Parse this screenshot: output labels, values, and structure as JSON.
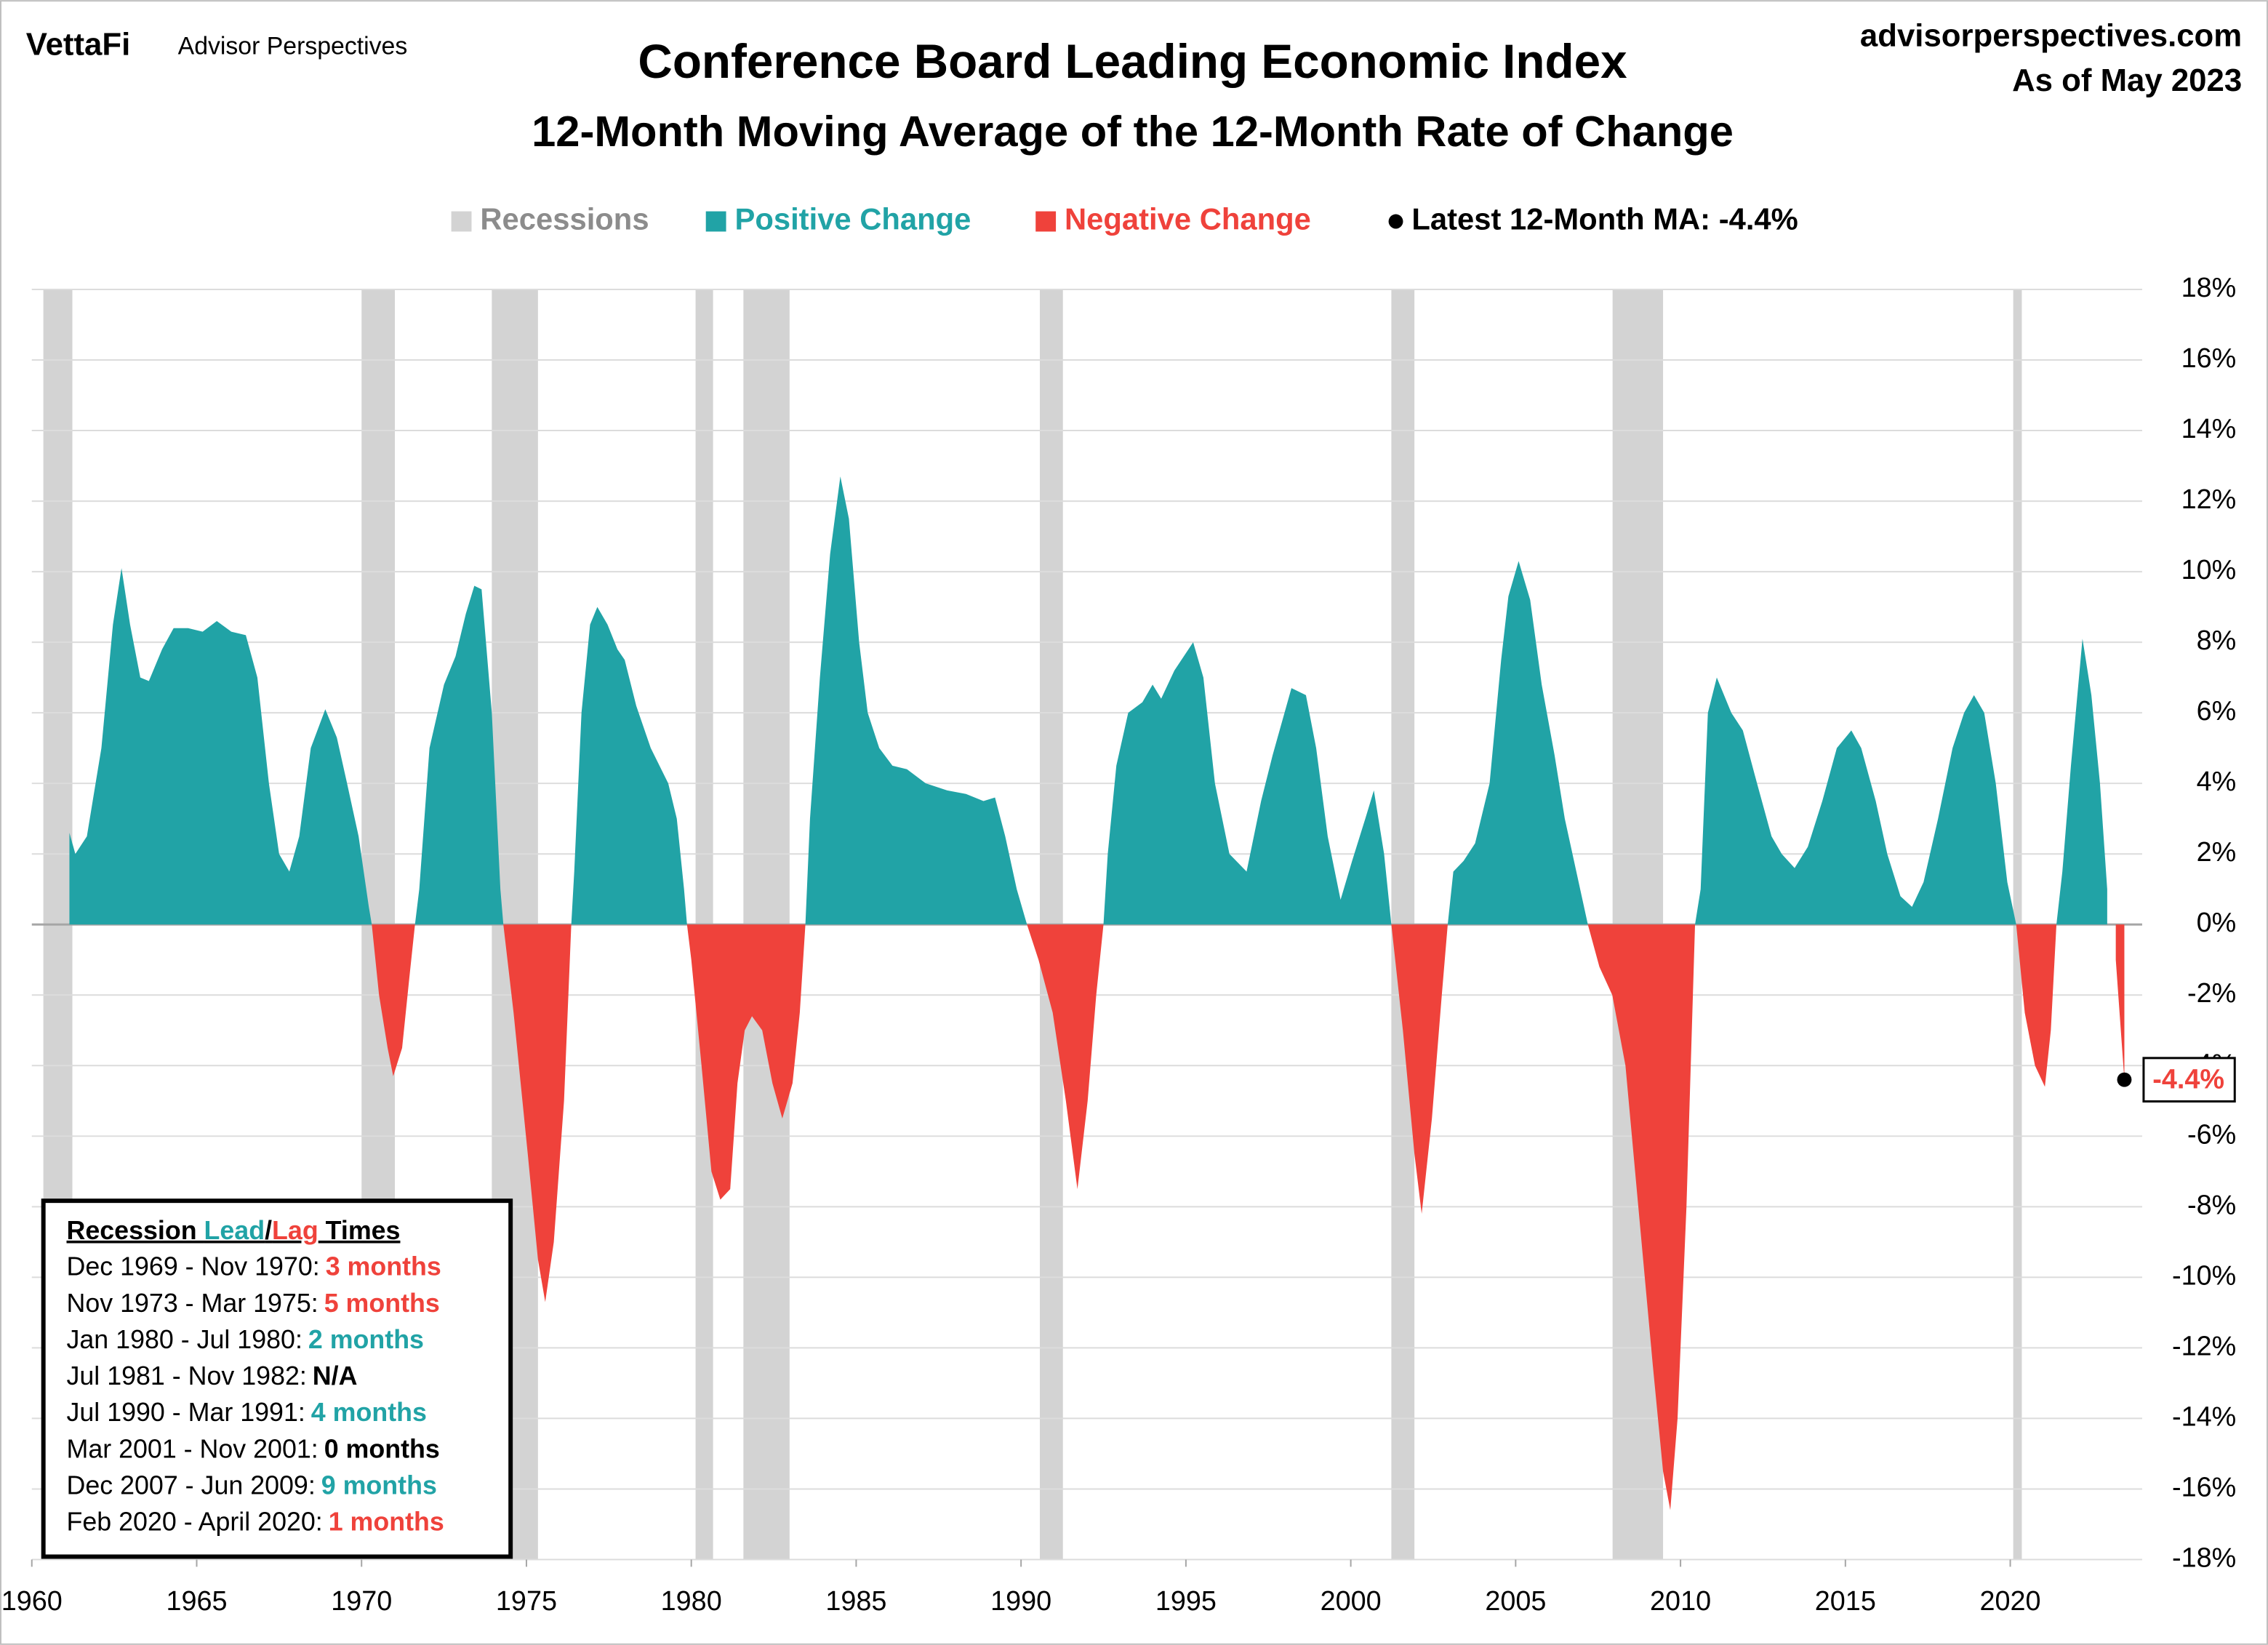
{
  "header": {
    "brand": "VettaFi",
    "brand_sub": "Advisor Perspectives",
    "site": "advisorperspectives.com",
    "as_of": "As of May 2023"
  },
  "chart_data": {
    "type": "area",
    "title": "Conference Board Leading Economic Index",
    "subtitle": "12-Month Moving Average of the 12-Month Rate of Change",
    "positive_color": "#21a3a6",
    "negative_color": "#ef423b",
    "recession_color": "#d3d3d3",
    "legend": [
      {
        "label": "Recessions",
        "color": "#d3d3d3",
        "text_color": "#8c8c8c"
      },
      {
        "label": "Positive Change",
        "color": "#21a3a6",
        "text_color": "#21a3a6"
      },
      {
        "label": "Negative Change",
        "color": "#ef423b",
        "text_color": "#ef423b"
      },
      {
        "label": "Latest 12-Month MA: -4.4%",
        "color": "#000000",
        "text_color": "#000000"
      }
    ],
    "latest_label": "-4.4%",
    "recessions": [
      [
        1960.35,
        1961.23
      ],
      [
        1970.0,
        1971.01
      ],
      [
        1973.95,
        1975.35
      ],
      [
        1980.13,
        1980.66
      ],
      [
        1981.58,
        1982.98
      ],
      [
        1990.57,
        1991.27
      ],
      [
        2001.23,
        2001.93
      ],
      [
        2007.94,
        2009.47
      ],
      [
        2020.09,
        2020.35
      ]
    ],
    "x": [
      1961.14,
      1961.32,
      1961.67,
      1962.11,
      1962.46,
      1962.72,
      1962.98,
      1963.29,
      1963.55,
      1963.95,
      1964.3,
      1964.74,
      1965.18,
      1965.61,
      1966.05,
      1966.49,
      1966.84,
      1967.19,
      1967.5,
      1967.81,
      1968.11,
      1968.46,
      1968.9,
      1969.25,
      1969.56,
      1969.91,
      1970.22,
      1970.31,
      1970.53,
      1970.79,
      1970.96,
      1971.23,
      1971.45,
      1971.62,
      1971.75,
      1972.06,
      1972.5,
      1972.85,
      1973.16,
      1973.42,
      1973.64,
      1973.95,
      1974.21,
      1974.3,
      1974.61,
      1975.04,
      1975.35,
      1975.57,
      1975.83,
      1976.14,
      1976.36,
      1976.45,
      1976.67,
      1976.93,
      1977.15,
      1977.46,
      1977.76,
      1977.98,
      1978.33,
      1978.77,
      1979.3,
      1979.56,
      1979.78,
      1979.87,
      1980.0,
      1980.31,
      1980.61,
      1980.88,
      1981.18,
      1981.4,
      1981.62,
      1981.84,
      1982.15,
      1982.46,
      1982.76,
      1983.07,
      1983.29,
      1983.46,
      1983.6,
      1983.9,
      1984.21,
      1984.52,
      1984.78,
      1985.09,
      1985.35,
      1985.7,
      1986.1,
      1986.54,
      1987.11,
      1987.76,
      1988.33,
      1988.86,
      1989.21,
      1989.52,
      1989.87,
      1990.18,
      1990.53,
      1990.96,
      1991.36,
      1991.71,
      1992.02,
      1992.28,
      1992.5,
      1992.63,
      1992.89,
      1993.25,
      1993.68,
      1993.99,
      1994.25,
      1994.65,
      1995.22,
      1995.53,
      1995.88,
      1996.32,
      1996.84,
      1997.28,
      1997.63,
      1998.2,
      1998.64,
      1998.95,
      1999.3,
      1999.69,
      2000.04,
      2000.44,
      2000.7,
      2001.01,
      2001.23,
      2001.58,
      2001.93,
      2002.15,
      2002.46,
      2002.76,
      2002.94,
      2003.11,
      2003.42,
      2003.77,
      2004.21,
      2004.56,
      2004.78,
      2005.09,
      2005.44,
      2005.79,
      2006.18,
      2006.49,
      2006.84,
      2007.19,
      2007.54,
      2007.93,
      2008.33,
      2008.72,
      2009.16,
      2009.47,
      2009.69,
      2009.91,
      2010.18,
      2010.44,
      2010.61,
      2010.83,
      2011.1,
      2011.54,
      2011.89,
      2012.32,
      2012.76,
      2013.07,
      2013.46,
      2013.86,
      2014.3,
      2014.74,
      2015.18,
      2015.48,
      2015.92,
      2016.27,
      2016.67,
      2017.02,
      2017.37,
      2017.81,
      2018.25,
      2018.6,
      2018.9,
      2019.21,
      2019.56,
      2019.91,
      2020.18,
      2020.44,
      2020.75,
      2021.05,
      2021.23,
      2021.4,
      2021.58,
      2021.84,
      2022.19,
      2022.46,
      2022.72,
      2022.94,
      2023.2,
      2023.46
    ],
    "values": [
      2.6,
      2.0,
      2.5,
      5.0,
      8.5,
      10.1,
      8.5,
      7.0,
      6.9,
      7.8,
      8.4,
      8.4,
      8.3,
      8.6,
      8.3,
      8.2,
      7.0,
      4.0,
      2.0,
      1.5,
      2.5,
      5.0,
      6.1,
      5.3,
      4.0,
      2.5,
      0.5,
      0,
      -2.0,
      -3.5,
      -4.3,
      -3.5,
      -1.5,
      0,
      1.0,
      5.0,
      6.8,
      7.6,
      8.8,
      9.6,
      9.5,
      6.0,
      1.0,
      0,
      -2.5,
      -6.5,
      -9.5,
      -10.7,
      -9.0,
      -5.0,
      0,
      1.5,
      6.0,
      8.5,
      9.0,
      8.5,
      7.8,
      7.5,
      6.2,
      5.0,
      4.0,
      3.0,
      1.0,
      0,
      -1.0,
      -4.0,
      -7.0,
      -7.8,
      -7.5,
      -4.5,
      -3.0,
      -2.6,
      -3.0,
      -4.5,
      -5.5,
      -4.5,
      -2.5,
      0,
      3.0,
      7.0,
      10.5,
      12.7,
      11.5,
      8.0,
      6.0,
      5.0,
      4.5,
      4.4,
      4.0,
      3.8,
      3.7,
      3.5,
      3.6,
      2.5,
      1.0,
      0,
      -1.0,
      -2.5,
      -5.0,
      -7.5,
      -5.0,
      -2.0,
      0,
      2.0,
      4.5,
      6.0,
      6.3,
      6.8,
      6.4,
      7.2,
      8.0,
      7.0,
      4.0,
      2.0,
      1.5,
      3.5,
      4.8,
      6.7,
      6.5,
      5.0,
      2.5,
      0.7,
      1.8,
      3.0,
      3.8,
      2.0,
      0,
      -3.0,
      -6.5,
      -8.2,
      -5.5,
      -2.0,
      0,
      1.5,
      1.8,
      2.3,
      4.0,
      7.5,
      9.3,
      10.3,
      9.2,
      6.8,
      4.8,
      3.0,
      1.5,
      0,
      -1.2,
      -2.0,
      -4.0,
      -8.0,
      -12.5,
      -15.5,
      -16.6,
      -14.0,
      -8.0,
      0,
      1.0,
      6.0,
      7.0,
      6.0,
      5.5,
      4.0,
      2.5,
      2.0,
      1.6,
      2.2,
      3.5,
      5.0,
      5.5,
      5.0,
      3.5,
      2.0,
      0.8,
      0.5,
      1.2,
      3.0,
      5.0,
      6.0,
      6.5,
      6.0,
      4.0,
      1.2,
      0,
      -2.5,
      -4.0,
      -4.6,
      -3.0,
      0,
      1.5,
      4.5,
      8.1,
      6.5,
      4.0,
      1.0,
      -1.0,
      -4.4
    ],
    "xlim": [
      1960,
      2024
    ],
    "ylim": [
      -18,
      18
    ],
    "xticks": [
      1960,
      1965,
      1970,
      1975,
      1980,
      1985,
      1990,
      1995,
      2000,
      2005,
      2010,
      2015,
      2020
    ],
    "yticks": [
      {
        "value": -18,
        "label": "-18%"
      },
      {
        "value": -16,
        "label": "-16%"
      },
      {
        "value": -14,
        "label": "-14%"
      },
      {
        "value": -12,
        "label": "-12%"
      },
      {
        "value": -10,
        "label": "-10%"
      },
      {
        "value": -8,
        "label": "-8%"
      },
      {
        "value": -6,
        "label": "-6%"
      },
      {
        "value": -4,
        "label": "-4%"
      },
      {
        "value": -2,
        "label": "-2%"
      },
      {
        "value": 0,
        "label": "0%"
      },
      {
        "value": 2,
        "label": "2%"
      },
      {
        "value": 4,
        "label": "4%"
      },
      {
        "value": 6,
        "label": "6%"
      },
      {
        "value": 8,
        "label": "8%"
      },
      {
        "value": 10,
        "label": "10%"
      },
      {
        "value": 12,
        "label": "12%"
      },
      {
        "value": 14,
        "label": "14%"
      },
      {
        "value": 16,
        "label": "16%"
      },
      {
        "value": 18,
        "label": "18%"
      }
    ],
    "grid": true,
    "lead_lag": {
      "title": [
        {
          "text": "Recession ",
          "color": "#000000"
        },
        {
          "text": "Lead",
          "color": "#21a3a6"
        },
        {
          "text": "/",
          "color": "#000000"
        },
        {
          "text": "Lag",
          "color": "#ef423b"
        },
        {
          "text": " Times",
          "color": "#000000"
        }
      ],
      "rows": [
        {
          "period": "Dec 1969 - Nov 1970:",
          "value": "3 months",
          "color": "#ef423b"
        },
        {
          "period": "Nov 1973 - Mar 1975:",
          "value": "5 months",
          "color": "#ef423b"
        },
        {
          "period": "Jan 1980 - Jul 1980:",
          "value": "2 months",
          "color": "#21a3a6"
        },
        {
          "period": "Jul 1981 - Nov 1982:",
          "value": "N/A",
          "color": "#000000"
        },
        {
          "period": "Jul 1990 - Mar 1991:",
          "value": "4 months",
          "color": "#21a3a6"
        },
        {
          "period": "Mar 2001 - Nov 2001:",
          "value": "0 months",
          "color": "#000000"
        },
        {
          "period": "Dec 2007 - Jun 2009:",
          "value": "9 months",
          "color": "#21a3a6"
        },
        {
          "period": "Feb 2020 - April 2020:",
          "value": "1 months",
          "color": "#ef423b"
        }
      ]
    }
  }
}
